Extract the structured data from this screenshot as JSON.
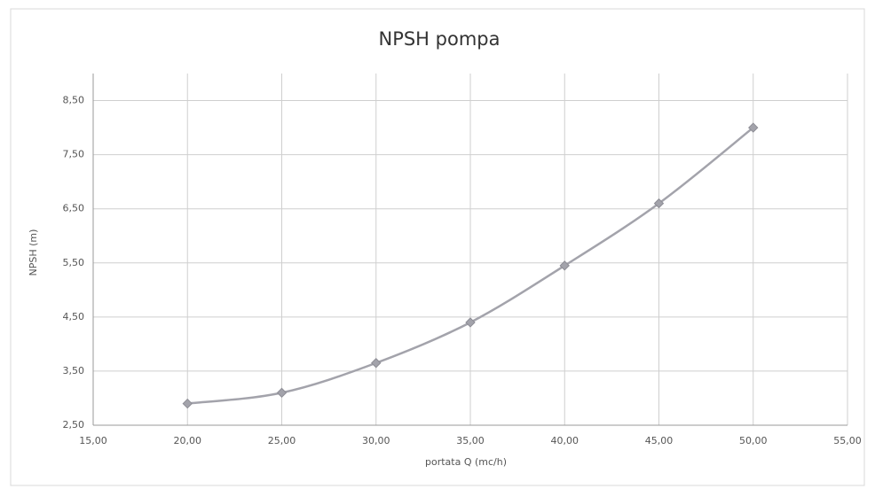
{
  "chart_data": {
    "type": "scatter",
    "title": "NPSH pompa",
    "x_label": "portata Q (mc/h)",
    "y_label": "NPSH (m)",
    "series": [
      {
        "name": "NPSH",
        "color": "#a3a3ab",
        "x": [
          20,
          25,
          30,
          35,
          40,
          45,
          50
        ],
        "values": [
          2.9,
          3.1,
          3.65,
          4.4,
          5.45,
          6.6,
          8.0
        ]
      }
    ],
    "xlim": [
      15,
      55
    ],
    "xticks": [
      {
        "value": 15,
        "label": "15,00"
      },
      {
        "value": 20,
        "label": "20,00"
      },
      {
        "value": 25,
        "label": "25,00"
      },
      {
        "value": 30,
        "label": "30,00"
      },
      {
        "value": 35,
        "label": "35,00"
      },
      {
        "value": 40,
        "label": "40,00"
      },
      {
        "value": 45,
        "label": "45,00"
      },
      {
        "value": 50,
        "label": "50,00"
      },
      {
        "value": 55,
        "label": "55,00"
      }
    ],
    "ylim": [
      2.5,
      9.0
    ],
    "yticks": [
      {
        "value": 2.5,
        "label": "2,50"
      },
      {
        "value": 3.5,
        "label": "3,50"
      },
      {
        "value": 4.5,
        "label": "4,50"
      },
      {
        "value": 5.5,
        "label": "5,50"
      },
      {
        "value": 6.5,
        "label": "6,50"
      },
      {
        "value": 7.5,
        "label": "7,50"
      },
      {
        "value": 8.5,
        "label": "8,50"
      }
    ],
    "grid": true,
    "smooth": true
  }
}
